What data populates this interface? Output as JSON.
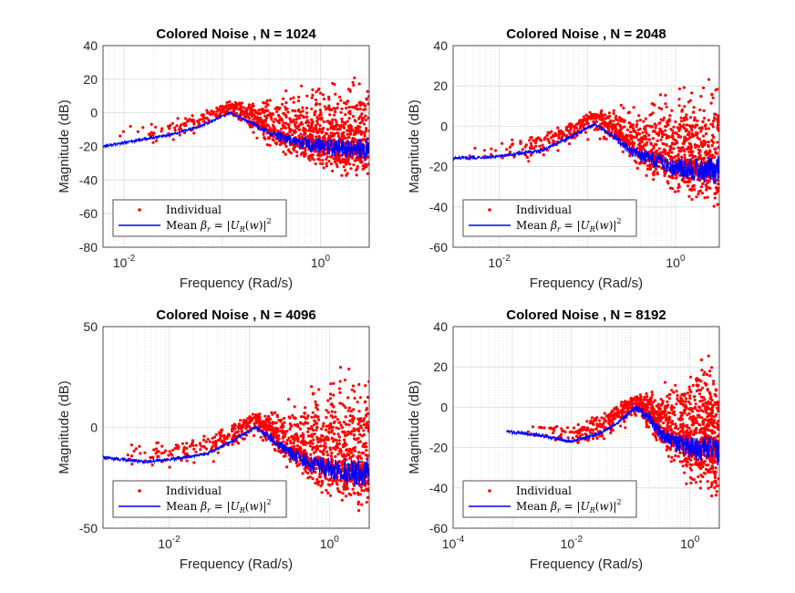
{
  "figure": {
    "background": "#ffffff"
  },
  "colors": {
    "individual": "#ff0000",
    "mean": "#0000ff",
    "grid": "#dcdcdc",
    "axis": "#262626"
  },
  "chart_data": [
    {
      "type": "scatter",
      "title": "Colored Noise , N = 1024",
      "xlabel": "Frequency (Rad/s)",
      "ylabel": "Magnitude (dB)",
      "xscale": "log",
      "xlim": [
        0.0061,
        3.1416
      ],
      "ylim": [
        -80,
        40
      ],
      "xticks": [
        {
          "v": 0.01,
          "base": "10",
          "exp": "-2"
        },
        {
          "v": 1,
          "base": "10",
          "exp": "0"
        }
      ],
      "yticks": [
        "-80",
        "-60",
        "-40",
        "-20",
        "0",
        "20",
        "40"
      ],
      "grid": true,
      "legend_position": "bottom-left",
      "series": [
        {
          "name": "Individual",
          "kind": "scatter",
          "color": "#ff0000"
        },
        {
          "name": "Mean",
          "kind": "line",
          "color": "#0000ff"
        }
      ],
      "mean": {
        "x": [
          0.0061,
          0.015,
          0.03,
          0.06,
          0.12,
          0.2,
          0.3,
          0.6,
          1,
          2,
          3.14
        ],
        "y": [
          -20,
          -16,
          -13,
          -8,
          0,
          -6,
          -12,
          -18,
          -20,
          -22,
          -22
        ]
      },
      "scatter_envelope": {
        "x": [
          0.0061,
          0.015,
          0.03,
          0.06,
          0.12,
          0.2,
          0.3,
          0.6,
          1,
          2,
          3.14
        ],
        "low": [
          -33,
          -25,
          -20,
          -14,
          -4,
          -14,
          -22,
          -32,
          -38,
          -42,
          -45
        ],
        "high": [
          -3,
          -5,
          -3,
          3,
          8,
          10,
          15,
          20,
          24,
          28,
          30
        ]
      }
    },
    {
      "type": "scatter",
      "title": "Colored Noise , N = 2048",
      "xlabel": "Frequency (Rad/s)",
      "ylabel": "Magnitude (dB)",
      "xscale": "log",
      "xlim": [
        0.003,
        3.1416
      ],
      "ylim": [
        -60,
        40
      ],
      "xticks": [
        {
          "v": 0.01,
          "base": "10",
          "exp": "-2"
        },
        {
          "v": 1,
          "base": "10",
          "exp": "0"
        }
      ],
      "yticks": [
        "-60",
        "-40",
        "-20",
        "0",
        "20",
        "40"
      ],
      "grid": true,
      "legend_position": "bottom-left",
      "series": [
        {
          "name": "Individual",
          "kind": "scatter",
          "color": "#ff0000"
        },
        {
          "name": "Mean",
          "kind": "line",
          "color": "#0000ff"
        }
      ],
      "mean": {
        "x": [
          0.003,
          0.01,
          0.03,
          0.06,
          0.12,
          0.2,
          0.3,
          0.6,
          1,
          2,
          3.14
        ],
        "y": [
          -16,
          -15,
          -12,
          -6,
          1,
          -5,
          -12,
          -17,
          -20,
          -22,
          -22
        ]
      },
      "scatter_envelope": {
        "x": [
          0.003,
          0.01,
          0.03,
          0.06,
          0.12,
          0.2,
          0.3,
          0.6,
          1,
          2,
          3.14
        ],
        "low": [
          -22,
          -22,
          -18,
          -12,
          -6,
          -12,
          -20,
          -28,
          -36,
          -40,
          -42
        ],
        "high": [
          -8,
          -6,
          -2,
          2,
          8,
          12,
          15,
          20,
          25,
          29,
          30
        ]
      }
    },
    {
      "type": "scatter",
      "title": "Colored Noise , N = 4096",
      "xlabel": "Frequency (Rad/s)",
      "ylabel": "Magnitude (dB)",
      "xscale": "log",
      "xlim": [
        0.0015,
        3.1416
      ],
      "ylim": [
        -50,
        50
      ],
      "xticks": [
        {
          "v": 0.01,
          "base": "10",
          "exp": "-2"
        },
        {
          "v": 1,
          "base": "10",
          "exp": "0"
        }
      ],
      "yticks": [
        "-50",
        "0",
        "50"
      ],
      "grid": true,
      "legend_position": "bottom-left",
      "series": [
        {
          "name": "Individual",
          "kind": "scatter",
          "color": "#ff0000"
        },
        {
          "name": "Mean",
          "kind": "line",
          "color": "#0000ff"
        }
      ],
      "mean": {
        "x": [
          0.0015,
          0.005,
          0.01,
          0.03,
          0.06,
          0.12,
          0.2,
          0.3,
          0.6,
          1,
          2,
          3.14
        ],
        "y": [
          -15,
          -17,
          -16,
          -13,
          -7,
          0,
          -6,
          -12,
          -18,
          -20,
          -22,
          -22
        ]
      },
      "scatter_envelope": {
        "x": [
          0.0015,
          0.005,
          0.01,
          0.03,
          0.06,
          0.12,
          0.2,
          0.3,
          0.6,
          1,
          2,
          3.14
        ],
        "low": [
          -20,
          -22,
          -22,
          -19,
          -13,
          -7,
          -14,
          -22,
          -32,
          -38,
          -42,
          -48
        ],
        "high": [
          -10,
          -5,
          -5,
          -2,
          4,
          8,
          12,
          18,
          25,
          33,
          40,
          43
        ]
      }
    },
    {
      "type": "scatter",
      "title": "Colored Noise , N = 8192",
      "xlabel": "Frequency (Rad/s)",
      "ylabel": "Magnitude (dB)",
      "xscale": "log",
      "xlim": [
        0.0001,
        3.1416
      ],
      "ylim": [
        -60,
        40
      ],
      "xticks": [
        {
          "v": 0.0001,
          "base": "10",
          "exp": "-4"
        },
        {
          "v": 0.01,
          "base": "10",
          "exp": "-2"
        },
        {
          "v": 1,
          "base": "10",
          "exp": "0"
        }
      ],
      "yticks": [
        "-60",
        "-40",
        "-20",
        "0",
        "20",
        "40"
      ],
      "grid": true,
      "legend_position": "bottom-left",
      "series": [
        {
          "name": "Individual",
          "kind": "scatter",
          "color": "#ff0000"
        },
        {
          "name": "Mean",
          "kind": "line",
          "color": "#0000ff"
        }
      ],
      "mean": {
        "x": [
          0.0008,
          0.003,
          0.01,
          0.03,
          0.06,
          0.12,
          0.2,
          0.3,
          0.6,
          1,
          2,
          3.14
        ],
        "y": [
          -12,
          -14,
          -17,
          -13,
          -8,
          0,
          -5,
          -12,
          -18,
          -20,
          -21,
          -22
        ]
      },
      "scatter_envelope": {
        "x": [
          0.0008,
          0.003,
          0.01,
          0.03,
          0.06,
          0.12,
          0.2,
          0.3,
          0.6,
          1,
          2,
          3.14
        ],
        "low": [
          -14,
          -18,
          -22,
          -20,
          -15,
          -6,
          -13,
          -22,
          -34,
          -42,
          -50,
          -52
        ],
        "high": [
          -10,
          -10,
          -8,
          -2,
          3,
          6,
          10,
          15,
          22,
          28,
          30,
          28
        ]
      }
    }
  ]
}
